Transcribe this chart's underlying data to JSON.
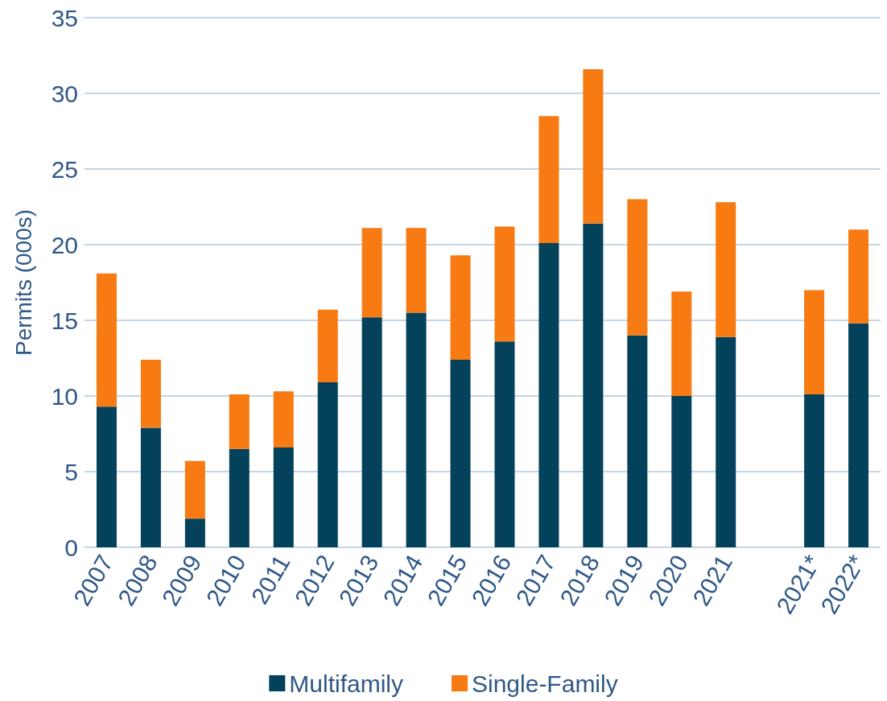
{
  "chart_data": {
    "type": "bar",
    "stacked": true,
    "ylabel": "Permits (000s)",
    "categories": [
      "2007",
      "2008",
      "2009",
      "2010",
      "2011",
      "2012",
      "2013",
      "2014",
      "2015",
      "2016",
      "2017",
      "2018",
      "2019",
      "2020",
      "2021",
      null,
      "2021*",
      "2022*"
    ],
    "series": [
      {
        "name": "Multifamily",
        "color": "#04415a",
        "values": [
          9.3,
          7.9,
          1.9,
          6.5,
          6.6,
          10.9,
          15.2,
          15.5,
          12.4,
          13.6,
          20.1,
          21.4,
          14.0,
          10.0,
          13.9,
          null,
          10.1,
          14.8
        ]
      },
      {
        "name": "Single-Family",
        "color": "#f77a12",
        "values": [
          8.8,
          4.5,
          3.8,
          3.6,
          3.7,
          4.8,
          5.9,
          5.6,
          6.9,
          7.6,
          8.4,
          10.2,
          9.0,
          6.9,
          8.9,
          null,
          6.9,
          6.2
        ]
      }
    ],
    "ylim": [
      0,
      35
    ],
    "yticks": [
      0,
      5,
      10,
      15,
      20,
      25,
      30,
      35
    ],
    "grid": "y",
    "legend": "bottom"
  }
}
